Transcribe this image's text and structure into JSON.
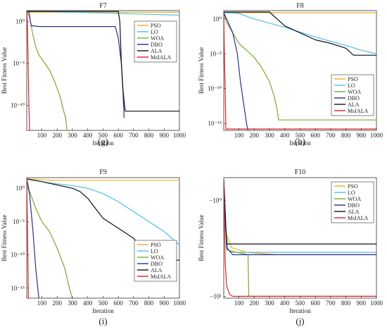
{
  "chart_data": [
    {
      "type": "line",
      "title": "F7",
      "caption": "(g)",
      "xlabel": "Iteration",
      "ylabel": "Best Fitness Value",
      "yscale": "log",
      "xlim": [
        1,
        1000
      ],
      "ylim_exp": [
        -13,
        1.3
      ],
      "xticks": [
        "100",
        "200",
        "300",
        "400",
        "500",
        "600",
        "700",
        "800",
        "900",
        "1000"
      ],
      "yticks": [
        {
          "exp": 0,
          "label": "10⁰"
        },
        {
          "exp": -5,
          "label": "10⁻⁵"
        },
        {
          "exp": -10,
          "label": "10⁻¹⁰"
        }
      ],
      "legend_position": "top-right",
      "series": [
        {
          "name": "PSO",
          "color": "#EDB120",
          "log10_points": [
            [
              1,
              1.1
            ],
            [
              10,
              1.1
            ],
            [
              1000,
              1.1
            ]
          ]
        },
        {
          "name": "LO",
          "color": "#4DBEEE",
          "log10_points": [
            [
              1,
              1.2
            ],
            [
              100,
              1.2
            ],
            [
              200,
              1.15
            ],
            [
              400,
              1.05
            ],
            [
              600,
              0.95
            ],
            [
              800,
              0.85
            ],
            [
              1000,
              0.75
            ]
          ]
        },
        {
          "name": "WOA",
          "color": "#77AC30",
          "log10_points": [
            [
              1,
              1.2
            ],
            [
              20,
              0.5
            ],
            [
              40,
              -1.5
            ],
            [
              60,
              -3
            ],
            [
              80,
              -4
            ],
            [
              100,
              -4.5
            ],
            [
              120,
              -5
            ],
            [
              150,
              -5.8
            ],
            [
              180,
              -7
            ],
            [
              200,
              -8
            ],
            [
              220,
              -9
            ],
            [
              240,
              -10.5
            ],
            [
              255,
              -11.5
            ],
            [
              265,
              -13
            ]
          ]
        },
        {
          "name": "DBO",
          "color": "#2E2E8C",
          "log10_points": [
            [
              1,
              1.2
            ],
            [
              15,
              1.2
            ],
            [
              30,
              -0.5
            ],
            [
              80,
              -0.6
            ],
            [
              580,
              -0.6
            ],
            [
              600,
              -2
            ],
            [
              620,
              -5
            ],
            [
              630,
              -8
            ],
            [
              638,
              -11.5
            ]
          ]
        },
        {
          "name": "ALA",
          "color": "#111111",
          "log10_points": [
            [
              1,
              1.2
            ],
            [
              600,
              1.2
            ],
            [
              610,
              0
            ],
            [
              620,
              -5
            ],
            [
              630,
              -8
            ],
            [
              645,
              -10.7
            ],
            [
              1000,
              -10.7
            ]
          ]
        },
        {
          "name": "MsIALA",
          "color": "#E0202A",
          "log10_points": [
            [
              1,
              1.2
            ],
            [
              5,
              0
            ],
            [
              10,
              -5
            ],
            [
              15,
              -10
            ],
            [
              20,
              -13
            ]
          ]
        }
      ]
    },
    {
      "type": "line",
      "title": "F8",
      "caption": "(h)",
      "xlabel": "Iteration",
      "ylabel": "Best Fitness Value",
      "yscale": "log",
      "xlim": [
        1,
        1000
      ],
      "ylim_exp": [
        -16,
        1.2
      ],
      "xticks": [
        "100",
        "200",
        "300",
        "400",
        "500",
        "600",
        "700",
        "800",
        "900",
        "1000"
      ],
      "yticks": [
        {
          "exp": 0,
          "label": "10⁰"
        },
        {
          "exp": -5,
          "label": "10⁻⁵"
        },
        {
          "exp": -10,
          "label": "10⁻¹⁰"
        },
        {
          "exp": -15,
          "label": "10⁻¹⁵"
        }
      ],
      "legend_position": "bottom-right",
      "series": [
        {
          "name": "PSO",
          "color": "#EDB120",
          "log10_points": [
            [
              1,
              0.9
            ],
            [
              1000,
              0.9
            ]
          ]
        },
        {
          "name": "LO",
          "color": "#4DBEEE",
          "log10_points": [
            [
              1,
              0.9
            ],
            [
              100,
              0.8
            ],
            [
              200,
              0
            ],
            [
              300,
              -0.6
            ],
            [
              400,
              -1.2
            ],
            [
              500,
              -1.9
            ],
            [
              600,
              -2.6
            ],
            [
              700,
              -3.2
            ],
            [
              800,
              -3.8
            ],
            [
              900,
              -4.5
            ],
            [
              1000,
              -5
            ]
          ]
        },
        {
          "name": "WOA",
          "color": "#77AC30",
          "log10_points": [
            [
              1,
              0.9
            ],
            [
              20,
              -0.5
            ],
            [
              60,
              -2
            ],
            [
              100,
              -3.5
            ],
            [
              150,
              -4.5
            ],
            [
              200,
              -5.5
            ],
            [
              250,
              -7
            ],
            [
              300,
              -9
            ],
            [
              330,
              -11
            ],
            [
              350,
              -13
            ],
            [
              360,
              -14.5
            ],
            [
              1000,
              -14.5
            ]
          ]
        },
        {
          "name": "DBO",
          "color": "#2E2E8C",
          "log10_points": [
            [
              1,
              0.9
            ],
            [
              30,
              -0.5
            ],
            [
              60,
              -2
            ],
            [
              90,
              -5
            ],
            [
              110,
              -9
            ],
            [
              130,
              -12
            ],
            [
              150,
              -15
            ],
            [
              160,
              -16
            ]
          ]
        },
        {
          "name": "ALA",
          "color": "#111111",
          "log10_points": [
            [
              1,
              1
            ],
            [
              300,
              1
            ],
            [
              400,
              -1
            ],
            [
              500,
              -2
            ],
            [
              600,
              -3
            ],
            [
              700,
              -3.5
            ],
            [
              800,
              -4.2
            ],
            [
              850,
              -5.2
            ],
            [
              1000,
              -5.2
            ]
          ]
        },
        {
          "name": "MsIALA",
          "color": "#E0202A",
          "log10_points": [
            [
              1,
              1
            ],
            [
              5,
              -5
            ],
            [
              10,
              -10
            ],
            [
              15,
              -15.8
            ],
            [
              1000,
              -15.8
            ]
          ]
        }
      ]
    },
    {
      "type": "line",
      "title": "F9",
      "caption": "(i)",
      "xlabel": "Iteration",
      "ylabel": "Best Fitness Value",
      "yscale": "log",
      "xlim": [
        1,
        1000
      ],
      "ylim_exp": [
        -16.5,
        1.6
      ],
      "xticks": [
        "100",
        "200",
        "300",
        "400",
        "500",
        "600",
        "700",
        "800",
        "900",
        "1000"
      ],
      "yticks": [
        {
          "exp": 0,
          "label": "10⁰"
        },
        {
          "exp": -5,
          "label": "10⁻⁵"
        },
        {
          "exp": -10,
          "label": "10⁻¹⁰"
        },
        {
          "exp": -15,
          "label": "10⁻¹⁵"
        }
      ],
      "legend_position": "bottom-right",
      "series": [
        {
          "name": "PSO",
          "color": "#EDB120",
          "log10_points": [
            [
              1,
              1.4
            ],
            [
              100,
              1.3
            ],
            [
              150,
              1.2
            ],
            [
              1000,
              1.2
            ]
          ]
        },
        {
          "name": "LO",
          "color": "#4DBEEE",
          "log10_points": [
            [
              1,
              1.4
            ],
            [
              50,
              1.2
            ],
            [
              150,
              0.8
            ],
            [
              300,
              0.4
            ],
            [
              400,
              0
            ],
            [
              500,
              -0.8
            ],
            [
              600,
              -2
            ],
            [
              700,
              -3.5
            ],
            [
              800,
              -5
            ],
            [
              900,
              -6.5
            ],
            [
              1000,
              -8.5
            ]
          ]
        },
        {
          "name": "WOA",
          "color": "#77AC30",
          "log10_points": [
            [
              1,
              1.4
            ],
            [
              20,
              -0.5
            ],
            [
              60,
              -3
            ],
            [
              100,
              -5
            ],
            [
              150,
              -6.5
            ],
            [
              200,
              -9
            ],
            [
              250,
              -12
            ],
            [
              280,
              -15
            ],
            [
              300,
              -16.5
            ]
          ]
        },
        {
          "name": "DBO",
          "color": "#2E2E8C",
          "log10_points": [
            [
              1,
              1.4
            ],
            [
              20,
              -1
            ],
            [
              40,
              -6
            ],
            [
              60,
              -12
            ],
            [
              80,
              -16.5
            ]
          ]
        },
        {
          "name": "ALA",
          "color": "#111111",
          "log10_points": [
            [
              1,
              1.4
            ],
            [
              100,
              1
            ],
            [
              200,
              0.5
            ],
            [
              300,
              0
            ],
            [
              350,
              -0.5
            ],
            [
              400,
              -1.5
            ],
            [
              450,
              -3
            ],
            [
              500,
              -4.5
            ],
            [
              600,
              -6
            ],
            [
              700,
              -7.5
            ],
            [
              800,
              -10
            ],
            [
              850,
              -10.8
            ],
            [
              1000,
              -10.8
            ]
          ]
        },
        {
          "name": "MsIALA",
          "color": "#E0202A",
          "log10_points": [
            [
              1,
              1.4
            ],
            [
              5,
              -5
            ],
            [
              12,
              -16.5
            ]
          ]
        }
      ]
    },
    {
      "type": "line",
      "title": "F10",
      "caption": "(j)",
      "xlabel": "Iteration",
      "ylabel": "Best Fitness Value",
      "yscale": "symlog-negative",
      "xlim": [
        1,
        1000
      ],
      "ylim_frac": [
        0,
        1
      ],
      "xticks": [
        "100",
        "200",
        "300",
        "400",
        "500",
        "600",
        "700",
        "800",
        "900",
        "1000"
      ],
      "yticks": [
        {
          "frac": 0.19,
          "label": "−10⁰"
        },
        {
          "frac": 0.985,
          "label": "−10¹"
        }
      ],
      "legend_position": "top-right",
      "series": [
        {
          "name": "PSO",
          "color": "#EDB120",
          "frac_points": [
            [
              1,
              0.02
            ],
            [
              15,
              0.45
            ],
            [
              50,
              0.58
            ],
            [
              150,
              0.62
            ],
            [
              350,
              0.64
            ],
            [
              1000,
              0.64
            ]
          ]
        },
        {
          "name": "LO",
          "color": "#4DBEEE",
          "frac_points": [
            [
              1,
              0.02
            ],
            [
              10,
              0.4
            ],
            [
              30,
              0.6
            ],
            [
              60,
              0.62
            ],
            [
              1000,
              0.62
            ]
          ]
        },
        {
          "name": "WOA",
          "color": "#77AC30",
          "frac_points": [
            [
              1,
              0.02
            ],
            [
              20,
              0.6
            ],
            [
              160,
              0.64
            ],
            [
              165,
              0.985
            ],
            [
              1000,
              0.985
            ]
          ]
        },
        {
          "name": "DBO",
          "color": "#2E2E8C",
          "frac_points": [
            [
              1,
              0.02
            ],
            [
              20,
              0.58
            ],
            [
              60,
              0.64
            ],
            [
              1000,
              0.64
            ]
          ]
        },
        {
          "name": "ALA",
          "color": "#111111",
          "frac_points": [
            [
              1,
              0.02
            ],
            [
              20,
              0.55
            ],
            [
              1000,
              0.55
            ]
          ]
        },
        {
          "name": "MsIALA",
          "color": "#E0202A",
          "frac_points": [
            [
              1,
              0.02
            ],
            [
              10,
              0.7
            ],
            [
              20,
              0.9
            ],
            [
              40,
              0.97
            ],
            [
              60,
              0.985
            ],
            [
              1000,
              0.985
            ]
          ]
        }
      ]
    }
  ]
}
